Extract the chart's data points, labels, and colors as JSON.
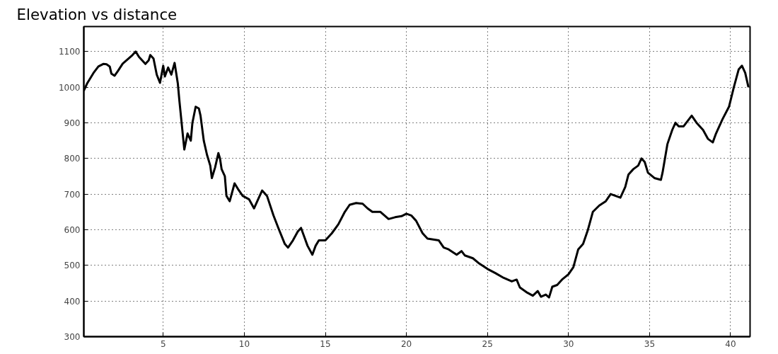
{
  "chart_data": {
    "type": "line",
    "title": "Elevation vs distance",
    "x": [
      0.1,
      0.3,
      0.7,
      1.0,
      1.3,
      1.5,
      1.7,
      1.8,
      2.0,
      2.2,
      2.5,
      2.8,
      3.1,
      3.3,
      3.5,
      3.9,
      4.1,
      4.2,
      4.4,
      4.6,
      4.8,
      5.0,
      5.1,
      5.3,
      5.5,
      5.7,
      5.9,
      6.0,
      6.2,
      6.3,
      6.5,
      6.7,
      6.8,
      7.0,
      7.2,
      7.3,
      7.5,
      7.7,
      7.9,
      8.0,
      8.2,
      8.4,
      8.5,
      8.6,
      8.8,
      8.9,
      9.1,
      9.4,
      9.6,
      9.9,
      10.3,
      10.6,
      10.9,
      11.1,
      11.4,
      11.8,
      12.1,
      12.5,
      12.7,
      13.0,
      13.3,
      13.5,
      13.7,
      13.9,
      14.2,
      14.4,
      14.6,
      15.0,
      15.4,
      15.8,
      16.2,
      16.5,
      16.9,
      17.3,
      17.6,
      17.9,
      18.4,
      18.9,
      19.3,
      19.7,
      20.0,
      20.3,
      20.6,
      21.0,
      21.3,
      22.0,
      22.3,
      22.6,
      23.1,
      23.4,
      23.6,
      24.1,
      24.5,
      25.0,
      25.5,
      26.0,
      26.5,
      26.8,
      27.0,
      27.4,
      27.8,
      28.1,
      28.3,
      28.6,
      28.8,
      29.0,
      29.3,
      29.6,
      30.0,
      30.3,
      30.6,
      30.9,
      31.2,
      31.5,
      31.9,
      32.3,
      32.6,
      32.9,
      33.2,
      33.5,
      33.7,
      34.0,
      34.3,
      34.5,
      34.7,
      34.9,
      35.3,
      35.7,
      35.8,
      36.1,
      36.4,
      36.6,
      36.8,
      37.1,
      37.6,
      37.9,
      38.3,
      38.6,
      38.9,
      39.1,
      39.5,
      39.9,
      40.2,
      40.5,
      40.7,
      40.9,
      41.1
    ],
    "series": [
      {
        "color": "#000000",
        "values": [
          990,
          1010,
          1040,
          1058,
          1065,
          1064,
          1058,
          1038,
          1032,
          1045,
          1066,
          1078,
          1090,
          1100,
          1085,
          1065,
          1075,
          1090,
          1080,
          1035,
          1012,
          1060,
          1030,
          1055,
          1035,
          1068,
          1010,
          960,
          870,
          825,
          870,
          850,
          900,
          945,
          940,
          920,
          850,
          810,
          780,
          745,
          775,
          815,
          800,
          770,
          750,
          695,
          680,
          730,
          715,
          695,
          685,
          660,
          690,
          710,
          695,
          640,
          605,
          560,
          550,
          570,
          595,
          605,
          580,
          555,
          530,
          555,
          570,
          570,
          590,
          615,
          650,
          670,
          675,
          673,
          660,
          650,
          650,
          630,
          635,
          638,
          645,
          640,
          625,
          590,
          575,
          570,
          550,
          545,
          530,
          540,
          528,
          520,
          505,
          490,
          478,
          465,
          455,
          460,
          438,
          425,
          415,
          428,
          412,
          418,
          410,
          440,
          445,
          460,
          475,
          495,
          545,
          560,
          600,
          650,
          668,
          680,
          700,
          695,
          690,
          720,
          755,
          770,
          780,
          800,
          790,
          760,
          745,
          740,
          760,
          840,
          880,
          900,
          890,
          890,
          920,
          900,
          880,
          855,
          845,
          870,
          910,
          945,
          1000,
          1050,
          1060,
          1040,
          1000
        ]
      }
    ],
    "xlim": [
      0.1,
      41.2
    ],
    "ylim": [
      300,
      1170
    ],
    "xticks": [
      5,
      10,
      15,
      20,
      25,
      30,
      35,
      40
    ],
    "yticks": [
      300,
      400,
      500,
      600,
      700,
      800,
      900,
      1000,
      1100
    ],
    "grid": true,
    "line_style": "solid",
    "marker": "none"
  }
}
